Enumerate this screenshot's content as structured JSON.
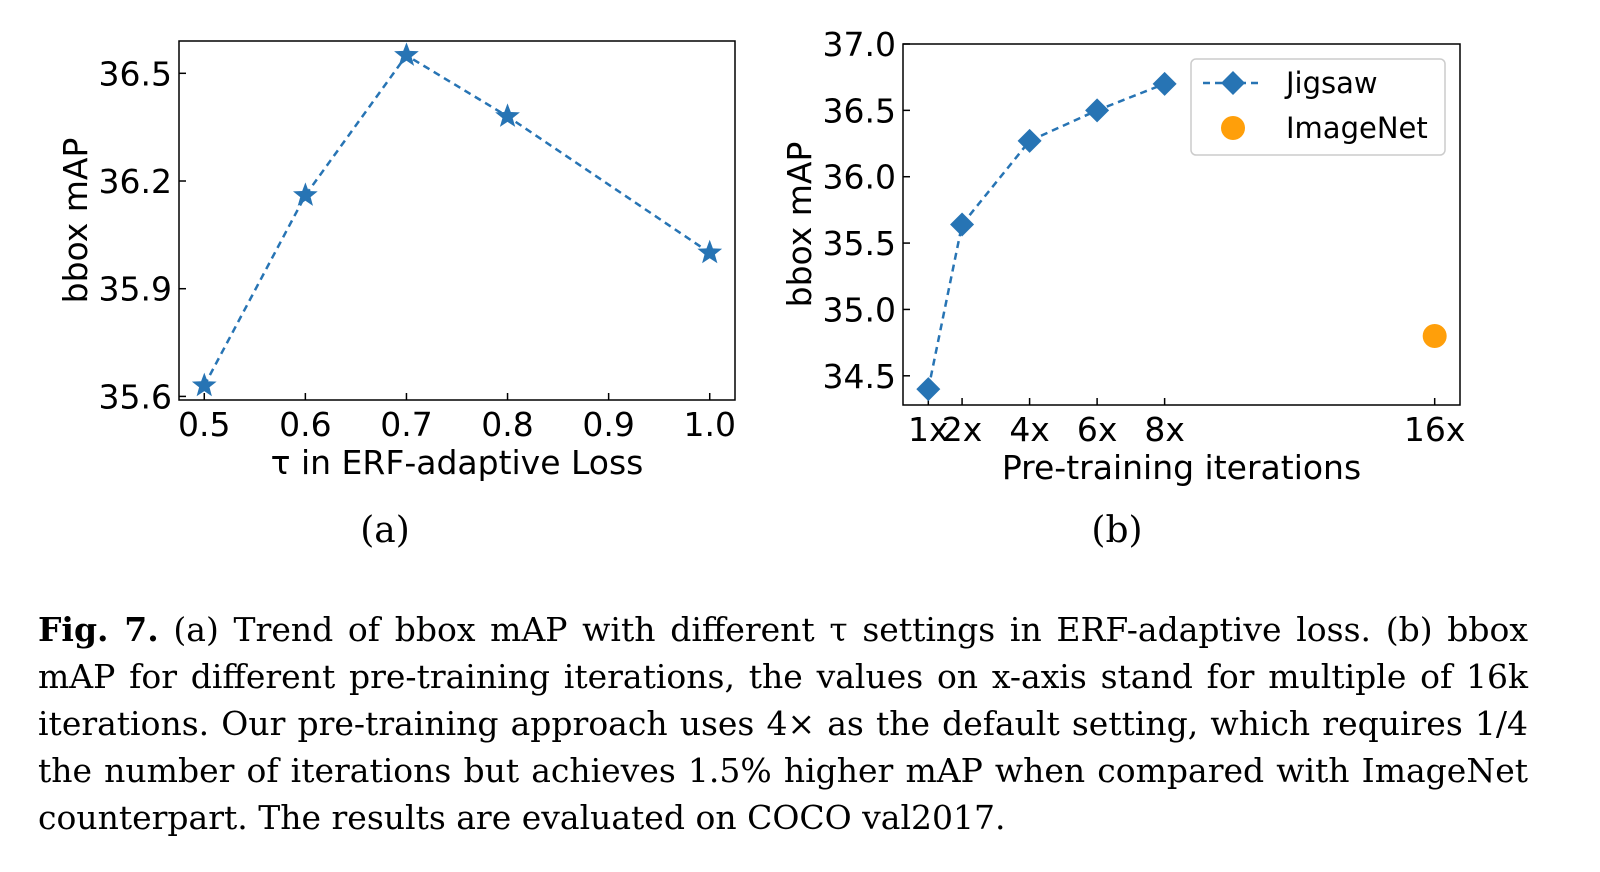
{
  "chart_data": [
    {
      "type": "line",
      "subfigure_label": "(a)",
      "xlabel": "τ in ERF-adaptive Loss",
      "ylabel": "bbox mAP",
      "x": [
        0.5,
        0.6,
        0.7,
        0.8,
        1.0
      ],
      "series": [
        {
          "values": [
            35.63,
            36.16,
            36.55,
            36.38,
            36.0
          ],
          "marker": "star",
          "line_style": "dashed",
          "color": "#2774b4"
        }
      ],
      "xticks": [
        "0.5",
        "0.6",
        "0.7",
        "0.8",
        "0.9",
        "1.0"
      ],
      "xtick_values": [
        0.5,
        0.6,
        0.7,
        0.8,
        0.9,
        1.0
      ],
      "yticks": [
        "35.6",
        "35.9",
        "36.2",
        "36.5"
      ],
      "ytick_values": [
        35.6,
        35.9,
        36.2,
        36.5
      ],
      "xlim": [
        0.475,
        1.025
      ],
      "ylim": [
        35.59,
        36.59
      ],
      "grid": false
    },
    {
      "type": "line",
      "subfigure_label": "(b)",
      "xlabel": "Pre-training iterations",
      "ylabel": "bbox mAP",
      "series": [
        {
          "name": "Jigsaw",
          "x": [
            1,
            2,
            4,
            6,
            8
          ],
          "values": [
            34.4,
            35.64,
            36.27,
            36.5,
            36.7
          ],
          "marker": "diamond",
          "line_style": "dashed",
          "color": "#2774b4"
        },
        {
          "name": "ImageNet",
          "x": [
            16
          ],
          "values": [
            34.8
          ],
          "marker": "circle",
          "line_style": "none",
          "color": "#ff9f0a"
        }
      ],
      "xticks": [
        "1x",
        "2x",
        "4x",
        "6x",
        "8x",
        "16x"
      ],
      "xtick_values": [
        1,
        2,
        4,
        6,
        8,
        16
      ],
      "yticks": [
        "34.5",
        "35.0",
        "35.5",
        "36.0",
        "36.5",
        "37.0"
      ],
      "ytick_values": [
        34.5,
        35.0,
        35.5,
        36.0,
        36.5,
        37.0
      ],
      "xlim": [
        0.25,
        16.75
      ],
      "ylim": [
        34.28,
        37.0
      ],
      "legend_position": "upper-right",
      "grid": false
    }
  ],
  "caption": {
    "label": "Fig. 7.",
    "text": "(a) Trend of bbox mAP with different τ settings in ERF-adaptive loss. (b) bbox mAP for different pre-training iterations, the values on x-axis stand for multiple of 16k iterations. Our pre-training approach uses 4× as the default setting, which requires 1/4 the number of iterations but achieves 1.5% higher mAP when compared with ImageNet counterpart. The results are evaluated on COCO val2017."
  }
}
